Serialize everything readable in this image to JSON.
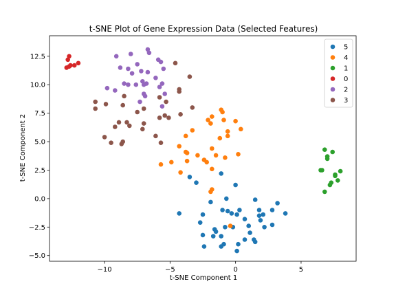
{
  "chart_data": {
    "type": "scatter",
    "title": "t-SNE Plot of Gene Expression Data (Selected Features)",
    "xlabel": "t-SNE Component 1",
    "ylabel": "t-SNE Component 2",
    "xlim": [
      -14.2,
      9.2
    ],
    "ylim": [
      -5.5,
      14.3
    ],
    "xticks": [
      -10,
      -5,
      0,
      5
    ],
    "yticks": [
      -5.0,
      -2.5,
      0.0,
      2.5,
      5.0,
      7.5,
      10.0,
      12.5
    ],
    "xtick_labels": [
      "−10",
      "−5",
      "0",
      "5"
    ],
    "ytick_labels": [
      "−5.0",
      "−2.5",
      "0.0",
      "2.5",
      "5.0",
      "7.5",
      "10.0",
      "12.5"
    ],
    "grid": false,
    "legend_position": "top-right",
    "series": [
      {
        "name": "5",
        "color": "#1f77b4",
        "points": [
          [
            -3.5,
            1.9
          ],
          [
            -3.0,
            1.4
          ],
          [
            -1.1,
            2.2
          ],
          [
            0.0,
            1.2
          ],
          [
            -4.3,
            -1.3
          ],
          [
            -2.5,
            -1.4
          ],
          [
            -2.7,
            -2.1
          ],
          [
            -1.9,
            -0.3
          ],
          [
            -1.0,
            -1.0
          ],
          [
            -0.6,
            -1.1
          ],
          [
            -0.7,
            0.0
          ],
          [
            -0.3,
            -1.3
          ],
          [
            0.1,
            -1.4
          ],
          [
            0.3,
            -1.0
          ],
          [
            1.5,
            -0.1
          ],
          [
            1.8,
            -1.0
          ],
          [
            1.8,
            -1.5
          ],
          [
            2.1,
            -1.4
          ],
          [
            1.9,
            -1.9
          ],
          [
            2.8,
            -1.0
          ],
          [
            3.2,
            -0.4
          ],
          [
            3.8,
            -1.3
          ],
          [
            2.8,
            -2.3
          ],
          [
            2.2,
            -2.5
          ],
          [
            -2.5,
            -3.2
          ],
          [
            -2.4,
            -4.2
          ],
          [
            -1.7,
            -3.3
          ],
          [
            -1.6,
            -2.7
          ],
          [
            -1.5,
            -2.9
          ],
          [
            -1.1,
            -3.3
          ],
          [
            -1.1,
            -4.2
          ],
          [
            -0.9,
            -4.0
          ],
          [
            -0.8,
            -2.5
          ],
          [
            -0.2,
            -2.5
          ],
          [
            0.2,
            -4.0
          ],
          [
            0.1,
            -4.6
          ],
          [
            0.7,
            -1.8
          ],
          [
            0.7,
            -3.6
          ],
          [
            1.0,
            -2.4
          ],
          [
            1.1,
            -3.0
          ],
          [
            1.4,
            -3.6
          ],
          [
            1.5,
            -3.8
          ]
        ]
      },
      {
        "name": "4",
        "color": "#ff7f0e",
        "points": [
          [
            -3.8,
            5.5
          ],
          [
            -3.3,
            6.0
          ],
          [
            -2.1,
            6.9
          ],
          [
            -1.8,
            7.2
          ],
          [
            -1.1,
            7.8
          ],
          [
            -1.0,
            7.6
          ],
          [
            -0.9,
            6.9
          ],
          [
            -1.2,
            5.3
          ],
          [
            -0.6,
            5.9
          ],
          [
            -0.6,
            5.5
          ],
          [
            0.0,
            6.8
          ],
          [
            0.4,
            6.1
          ],
          [
            -1.9,
            6.6
          ],
          [
            -4.3,
            4.6
          ],
          [
            -3.8,
            4.1
          ],
          [
            -3.7,
            4.0
          ],
          [
            -5.7,
            3.0
          ],
          [
            -4.9,
            3.2
          ],
          [
            -3.7,
            3.3
          ],
          [
            -4.2,
            2.3
          ],
          [
            -2.9,
            3.8
          ],
          [
            -2.4,
            3.4
          ],
          [
            -2.2,
            3.2
          ],
          [
            -1.8,
            4.4
          ],
          [
            -1.5,
            3.8
          ],
          [
            -0.8,
            3.6
          ],
          [
            0.2,
            3.9
          ],
          [
            -1.8,
            2.6
          ],
          [
            -1.9,
            0.6
          ],
          [
            -1.8,
            0.8
          ],
          [
            -0.4,
            -2.4
          ]
        ]
      },
      {
        "name": "1",
        "color": "#2ca02c",
        "points": [
          [
            6.8,
            4.3
          ],
          [
            7.4,
            4.1
          ],
          [
            7.0,
            3.7
          ],
          [
            6.5,
            2.5
          ],
          [
            6.6,
            2.5
          ],
          [
            7.0,
            3.5
          ],
          [
            7.6,
            2.1
          ],
          [
            7.6,
            2.0
          ],
          [
            8.0,
            2.4
          ],
          [
            7.3,
            1.4
          ],
          [
            7.2,
            1.2
          ],
          [
            7.8,
            1.6
          ],
          [
            6.8,
            0.6
          ]
        ]
      },
      {
        "name": "0",
        "color": "#d62728",
        "points": [
          [
            -12.7,
            12.5
          ],
          [
            -12.8,
            12.2
          ],
          [
            -12.6,
            11.7
          ],
          [
            -12.9,
            11.5
          ],
          [
            -12.7,
            11.6
          ],
          [
            -12.3,
            11.7
          ],
          [
            -12.0,
            11.9
          ]
        ]
      },
      {
        "name": "2",
        "color": "#9467bd",
        "points": [
          [
            -9.1,
            12.5
          ],
          [
            -8.0,
            12.7
          ],
          [
            -6.7,
            13.1
          ],
          [
            -6.6,
            12.8
          ],
          [
            -5.7,
            12.0
          ],
          [
            -5.5,
            11.4
          ],
          [
            -8.8,
            11.5
          ],
          [
            -8.2,
            11.4
          ],
          [
            -7.5,
            11.8
          ],
          [
            -7.2,
            11.2
          ],
          [
            -6.7,
            11.1
          ],
          [
            -7.9,
            11.0
          ],
          [
            -8.5,
            10.1
          ],
          [
            -8.2,
            10.0
          ],
          [
            -7.6,
            10.0
          ],
          [
            -7.1,
            10.3
          ],
          [
            -7.0,
            10.0
          ],
          [
            -6.8,
            10.1
          ],
          [
            -6.1,
            10.6
          ],
          [
            -5.6,
            10.1
          ],
          [
            -5.8,
            9.8
          ],
          [
            -5.4,
            9.2
          ],
          [
            -7.0,
            9.2
          ],
          [
            -6.9,
            9.0
          ],
          [
            -9.8,
            9.7
          ],
          [
            -9.2,
            9.5
          ],
          [
            -5.6,
            8.1
          ],
          [
            -7.3,
            8.5
          ],
          [
            -5.9,
            12.2
          ]
        ]
      },
      {
        "name": "3",
        "color": "#8c564b",
        "points": [
          [
            -4.6,
            11.9
          ],
          [
            -3.5,
            10.7
          ],
          [
            -4.3,
            9.6
          ],
          [
            -4.3,
            9.4
          ],
          [
            -3.3,
            8.0
          ],
          [
            -5.3,
            8.5
          ],
          [
            -5.8,
            8.9
          ],
          [
            -7.0,
            7.9
          ],
          [
            -7.5,
            7.6
          ],
          [
            -8.6,
            8.2
          ],
          [
            -8.5,
            9.0
          ],
          [
            -10.7,
            8.5
          ],
          [
            -10.7,
            7.9
          ],
          [
            -9.9,
            8.3
          ],
          [
            -8.3,
            6.7
          ],
          [
            -8.9,
            6.7
          ],
          [
            -8.1,
            6.4
          ],
          [
            -7.1,
            6.1
          ],
          [
            -7.0,
            6.6
          ],
          [
            -5.8,
            7.1
          ],
          [
            -5.4,
            7.3
          ],
          [
            -5.1,
            7.1
          ],
          [
            -4.2,
            7.4
          ],
          [
            -9.2,
            6.3
          ],
          [
            -10.0,
            5.4
          ],
          [
            -6.1,
            5.5
          ],
          [
            -9.5,
            4.9
          ],
          [
            -8.7,
            4.8
          ],
          [
            -8.6,
            5.0
          ],
          [
            -5.7,
            4.9
          ]
        ]
      }
    ]
  }
}
